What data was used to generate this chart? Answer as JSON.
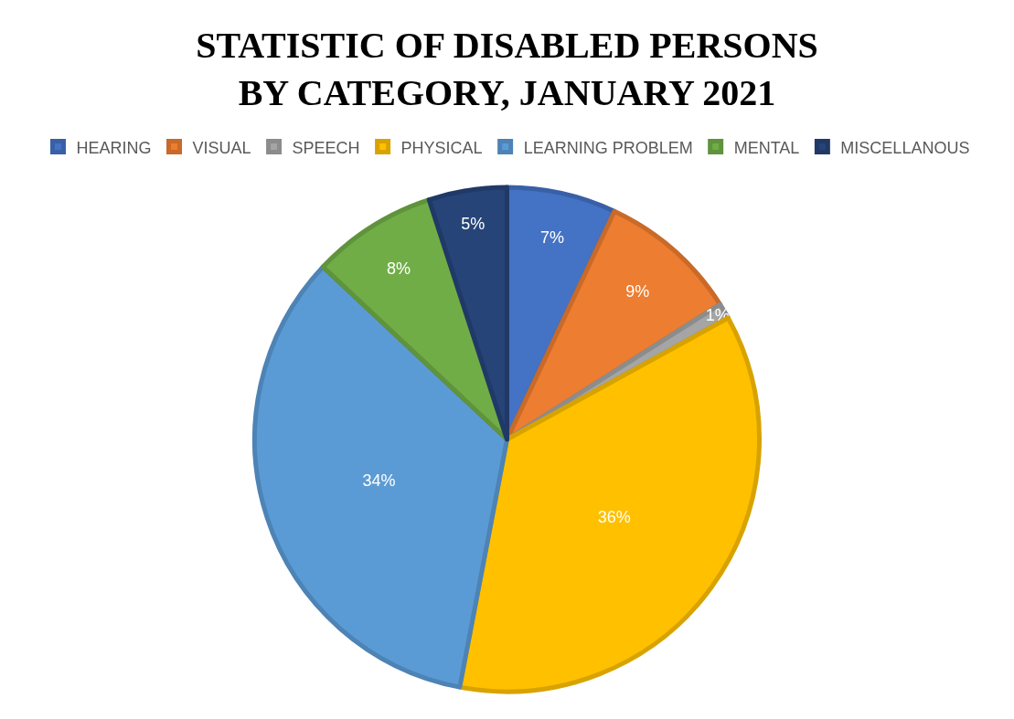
{
  "chart_data": {
    "type": "pie",
    "title": "STATISTIC OF DISABLED PERSONS BY CATEGORY, JANUARY 2021",
    "categories": [
      "HEARING",
      "VISUAL",
      "SPEECH",
      "PHYSICAL",
      "LEARNING PROBLEM",
      "MENTAL",
      "MISCELLANOUS"
    ],
    "values": [
      7,
      9,
      1,
      36,
      34,
      8,
      5
    ],
    "value_labels": [
      "7%",
      "9%",
      "1%",
      "36%",
      "34%",
      "8%",
      "5%"
    ],
    "colors": [
      "#4472c4",
      "#ed7d31",
      "#a5a5a5",
      "#ffc000",
      "#5b9bd5",
      "#70ad47",
      "#264478"
    ],
    "legend": "top"
  }
}
